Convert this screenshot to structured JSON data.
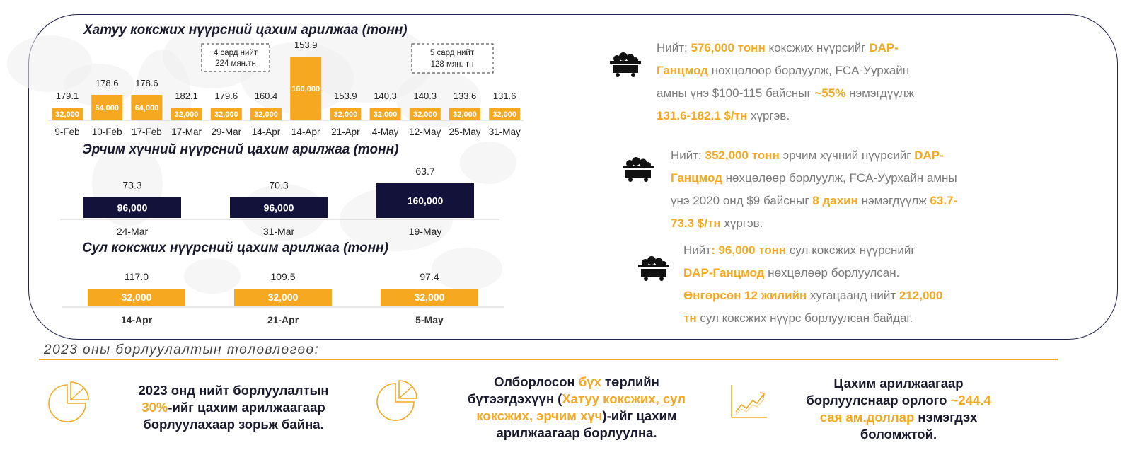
{
  "charts": [
    {
      "title": "Хатуу коксжих нүүрсний цахим арилжаа (тонн)",
      "callouts": [
        "4 сард нийт\n224 мян.тн",
        "5 сард нийт\n128 мян. тн"
      ]
    },
    {
      "title": "Эрчим хүчний нүүрсний цахим арилжаа (тонн)"
    },
    {
      "title": "Сул коксжих нүүрсний цахим арилжаа (тонн)"
    }
  ],
  "chart_data": [
    {
      "type": "bar",
      "title": "Хатуу коксжих нүүрсний цахим арилжаа (тонн)",
      "categories": [
        "9-Feb",
        "10-Feb",
        "17-Feb",
        "17-Mar",
        "29-Mar",
        "14-Apr",
        "14-Apr",
        "21-Apr",
        "4-May",
        "12-May",
        "25-May",
        "31-May"
      ],
      "series": [
        {
          "values": [
            32000,
            64000,
            64000,
            32000,
            32000,
            32000,
            160000,
            32000,
            32000,
            32000,
            32000,
            32000
          ],
          "value_labels": [
            "32,000",
            "64,000",
            "64,000",
            "32,000",
            "32,000",
            "32,000",
            "160,000",
            "32,000",
            "32,000",
            "32,000",
            "32,000",
            "32,000"
          ]
        }
      ],
      "price_labels": [
        "179.1",
        "178.6",
        "178.6",
        "182.1",
        "179.6",
        "160.4",
        "153.9",
        "153.9",
        "140.3",
        "140.3",
        "133.6",
        "131.6"
      ],
      "color": "#f5a820"
    },
    {
      "type": "bar",
      "title": "Эрчим хүчний нүүрсний цахим арилжаа (тонн)",
      "categories": [
        "24-Mar",
        "31-Mar",
        "19-May"
      ],
      "series": [
        {
          "values": [
            96000,
            96000,
            160000
          ],
          "value_labels": [
            "96,000",
            "96,000",
            "160,000"
          ]
        }
      ],
      "price_labels": [
        "73.3",
        "70.3",
        "63.7"
      ],
      "color": "#12123a"
    },
    {
      "type": "bar",
      "title": "Сул коксжих нүүрсний цахим арилжаа (тонн)",
      "categories": [
        "14-Apr",
        "21-Apr",
        "5-May"
      ],
      "series": [
        {
          "values": [
            32000,
            32000,
            32000
          ],
          "value_labels": [
            "32,000",
            "32,000",
            "32,000"
          ]
        }
      ],
      "price_labels": [
        "117.0",
        "109.5",
        "97.4"
      ],
      "color": "#f5a820"
    }
  ],
  "panels": [
    {
      "icon": "coal-cart-icon",
      "lines": [
        [
          [
            "Нийт: ",
            ""
          ],
          [
            "576,000 тонн",
            "hl"
          ],
          [
            " коксжих нүүрсийг ",
            ""
          ],
          [
            "DAP-",
            "hl"
          ]
        ],
        [
          [
            "Ганцмод",
            "hl"
          ],
          [
            " нөхцөлөөр борлуулж, FCA-Уурхайн",
            ""
          ]
        ],
        [
          [
            "амны үнэ $100-115 байсныг  ",
            ""
          ],
          [
            "~55%",
            "hl"
          ],
          [
            " нэмэгдүүлж",
            ""
          ]
        ],
        [
          [
            "131.6-182.1 $/тн",
            "hl"
          ],
          [
            " хүргэв.",
            ""
          ]
        ]
      ]
    },
    {
      "icon": "coal-cart-icon",
      "lines": [
        [
          [
            "Нийт: ",
            ""
          ],
          [
            "352,000 тонн",
            "hl"
          ],
          [
            "  эрчим хүчний нүүрсийг ",
            ""
          ],
          [
            "DAP-",
            "hl"
          ]
        ],
        [
          [
            "Ганцмод",
            "hl"
          ],
          [
            " нөхцөлөөр борлуулж, FCA-Уурхайн амны",
            ""
          ]
        ],
        [
          [
            "үнэ 2020 онд $9 байсныг ",
            ""
          ],
          [
            "8 дахин",
            "hl"
          ],
          [
            " нэмэгдүүлж ",
            ""
          ],
          [
            "63.7-",
            "hl"
          ]
        ],
        [
          [
            "73.3 $/тн",
            "hl"
          ],
          [
            " хүргэв.",
            ""
          ]
        ]
      ]
    },
    {
      "icon": "coal-cart-icon",
      "lines": [
        [
          [
            "Нийт",
            ""
          ],
          [
            ": 96,000 тонн",
            "hl"
          ],
          [
            " сул коксжих нүүрснийг",
            ""
          ]
        ],
        [
          [
            "DAP-Ганцмод",
            "hl"
          ],
          [
            " нөхцөлөөр борлуулсан.",
            ""
          ]
        ],
        [
          [
            "Өнгөрсөн 12 жилийн",
            "hl"
          ],
          [
            " хугацаанд нийт ",
            ""
          ],
          [
            "212,000",
            "hl"
          ]
        ],
        [
          [
            "тн",
            "hl"
          ],
          [
            " сул коксжих нүүрс борлуулсан байдаг.",
            ""
          ]
        ]
      ]
    }
  ],
  "plan": {
    "title": "2023 оны борлуулалтын төлөвлөгөө:",
    "items": [
      {
        "icon": "pie-chart-icon",
        "lines": [
          [
            [
              "2023 онд нийт борлуулалтын",
              ""
            ]
          ],
          [
            [
              "30%",
              "hl"
            ],
            [
              "-ийг цахим арилжаагаар",
              ""
            ]
          ],
          [
            [
              "борлуулахаар зорьж байна.",
              ""
            ]
          ]
        ]
      },
      {
        "icon": "pie-chart-icon",
        "lines": [
          [
            [
              "Олборлосон ",
              ""
            ],
            [
              "бүх",
              "hl"
            ],
            [
              " төрлийн",
              ""
            ]
          ],
          [
            [
              "бүтээгдэхүүн (",
              ""
            ],
            [
              "Хатуу коксжих, сул",
              "hl"
            ]
          ],
          [
            [
              "коксжих, эрчим хүч",
              "hl"
            ],
            [
              ")-ийг цахим",
              ""
            ]
          ],
          [
            [
              "арилжаагаар борлуулна.",
              ""
            ]
          ]
        ]
      },
      {
        "icon": "growth-chart-icon",
        "lines": [
          [
            [
              "Цахим арилжаагаар",
              ""
            ]
          ],
          [
            [
              "борлуулснаар орлого ",
              ""
            ],
            [
              "~244.4",
              "hl"
            ]
          ],
          [
            [
              "сая ам.доллар",
              "hl"
            ],
            [
              " нэмэгдэх",
              ""
            ]
          ],
          [
            [
              "боломжтой.",
              ""
            ]
          ]
        ]
      }
    ]
  }
}
